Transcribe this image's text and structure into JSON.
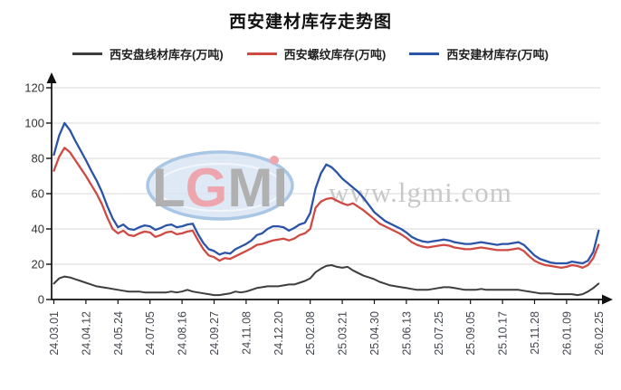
{
  "page": {
    "background": "#ffffff"
  },
  "chart_data": {
    "type": "line",
    "title": "西安建材库存走势图",
    "xlabel": "",
    "ylabel": "",
    "ylim": [
      0,
      120
    ],
    "y_ticks": [
      0,
      20,
      40,
      60,
      80,
      100,
      120
    ],
    "grid": "horizontal",
    "legend_position": "top",
    "axis_arrows": true,
    "x_tick_labels": [
      "24.03.01",
      "24.04.12",
      "24.05.24",
      "24.07.05",
      "24.08.16",
      "24.09.27",
      "24.11.08",
      "24.12.20",
      "25.02.08",
      "25.03.21",
      "25.04.30",
      "25.06.13",
      "25.07.25",
      "25.09.05",
      "25.10.17",
      "25.11.28",
      "26.01.09",
      "26.02.25"
    ],
    "points_per_tick_interval": 6,
    "series": [
      {
        "name": "西安盘线材库存(万吨)",
        "color": "#3d3d3d",
        "values": [
          9,
          12,
          13,
          12.5,
          11.5,
          10.5,
          9.5,
          8.5,
          7.5,
          7,
          6.5,
          6,
          5.5,
          5,
          4.5,
          4.5,
          4.5,
          4,
          4,
          4,
          4,
          4,
          4.5,
          4,
          4.5,
          5.5,
          4.5,
          4,
          3.5,
          3,
          2.5,
          2.5,
          3,
          3.5,
          4.5,
          4,
          4.5,
          5.5,
          6.5,
          7,
          7.5,
          7.5,
          7.5,
          8,
          8.5,
          8.5,
          9.5,
          10.5,
          12,
          15.5,
          17.5,
          19,
          19.5,
          18.5,
          18,
          18.5,
          16.5,
          15,
          13.5,
          12.5,
          11.5,
          10,
          9,
          8,
          7.5,
          7,
          6.5,
          6,
          5.5,
          5.5,
          5.5,
          6,
          6.5,
          7,
          7,
          6.5,
          6,
          5.5,
          5.5,
          5.5,
          6,
          5.5,
          5.5,
          5.5,
          5.5,
          5.5,
          5.5,
          5.5,
          5,
          4.5,
          4,
          3.5,
          3.5,
          3.5,
          3,
          3,
          3,
          3,
          2.5,
          3,
          4.5,
          6.5,
          9
        ]
      },
      {
        "name": "西安螺纹库存(万吨)",
        "color": "#cf4a42",
        "values": [
          73,
          81,
          86,
          83.5,
          79,
          74.5,
          70,
          65,
          60,
          54,
          46.5,
          40,
          37.5,
          39,
          36.5,
          36,
          37.5,
          38.5,
          38,
          35.5,
          36.5,
          38,
          38.5,
          37,
          37.5,
          38.5,
          39,
          33.5,
          28.5,
          25,
          24,
          22,
          23.5,
          23,
          24.5,
          26,
          27.5,
          29,
          31,
          31.5,
          32.5,
          33.5,
          34,
          34.5,
          33.5,
          34.5,
          36.5,
          37.5,
          40,
          52,
          55.5,
          57,
          57.5,
          56,
          54.5,
          53.5,
          54.5,
          52.5,
          50.5,
          48,
          45.5,
          43,
          41.5,
          40,
          38.5,
          37,
          35,
          32.5,
          31,
          30,
          29.5,
          30,
          30.5,
          31,
          30.5,
          29.5,
          29,
          28.5,
          28.5,
          29,
          29.5,
          29,
          28.5,
          28,
          28,
          28,
          28.5,
          29,
          27.5,
          24.5,
          22,
          20.5,
          19.5,
          19,
          18.5,
          18,
          18.5,
          19.5,
          19,
          18,
          19.5,
          23.5,
          31
        ]
      },
      {
        "name": "西安建材库存(万吨)",
        "color": "#2b54a8",
        "values": [
          82,
          93,
          100,
          96,
          90,
          84.5,
          79,
          73,
          67.5,
          61,
          53,
          46,
          41,
          42.5,
          40,
          39.5,
          41,
          42,
          41.5,
          39.5,
          40.5,
          42,
          42.5,
          41,
          41.5,
          42.5,
          43,
          37,
          32,
          28.5,
          27.5,
          25.5,
          26.5,
          26,
          28.5,
          30,
          31.5,
          33.5,
          36.5,
          37.5,
          40,
          41.5,
          41.5,
          41,
          39,
          40.5,
          42.5,
          43.5,
          49,
          63,
          71.5,
          76.5,
          75,
          72,
          68.5,
          66,
          63.5,
          61,
          57.5,
          53.5,
          49.5,
          47,
          44.5,
          43,
          41.5,
          40,
          38,
          35.5,
          34,
          33,
          32.5,
          33,
          33.5,
          34,
          33.5,
          32.5,
          32,
          31.5,
          31.5,
          32,
          32.5,
          32,
          31.5,
          31,
          31.5,
          31.5,
          32,
          32.5,
          31,
          28,
          25,
          23,
          22,
          21,
          20.5,
          20.5,
          20.5,
          21.5,
          21,
          20.5,
          22,
          27,
          39
        ]
      }
    ],
    "watermark": {
      "logo_text": "LGMI",
      "url_text": "www.lgmi.com",
      "oval_stroke": "#a9c6e4",
      "oval_fill": "#d8e5f3",
      "letter_color": "#b0b0b0",
      "accent_color": "#eda6ad",
      "url_color": "#c8c8c8"
    },
    "axis_color": "#111111",
    "gridline_color": "#d9d9d9",
    "tick_label_color": "#43474f"
  }
}
